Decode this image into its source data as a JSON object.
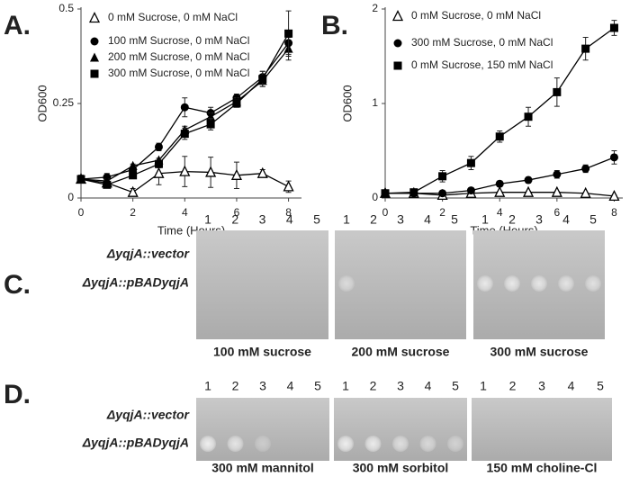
{
  "chart_data": [
    {
      "type": "line",
      "label": "A.",
      "xlabel": "Time (Hours)",
      "ylabel": "OD600",
      "x": [
        0,
        1,
        2,
        3,
        4,
        5,
        6,
        7,
        8
      ],
      "xlim": [
        0,
        8.5
      ],
      "xticks": [
        0,
        2,
        4,
        6,
        8
      ],
      "ylim": [
        0,
        0.5
      ],
      "yticks": [
        0,
        0.25,
        0.5
      ],
      "grid": false,
      "legend": "upper left",
      "series": [
        {
          "name": "0 mM Sucrose, 0 mM NaCl",
          "color": "#000000",
          "marker": "triangle-open",
          "values": [
            0.05,
            0.04,
            0.015,
            0.065,
            0.07,
            0.068,
            0.06,
            0.065,
            0.03
          ],
          "errors": [
            0.01,
            0.01,
            0.01,
            0.03,
            0.04,
            0.04,
            0.035,
            0.01,
            0.015
          ]
        },
        {
          "name": "100 mM Sucrose, 0 mM NaCl",
          "color": "#000000",
          "marker": "circle",
          "values": [
            0.05,
            0.055,
            0.075,
            0.135,
            0.24,
            0.225,
            0.265,
            0.32,
            0.41
          ],
          "errors": [
            0.01,
            0.01,
            0.01,
            0.01,
            0.025,
            0.015,
            0.01,
            0.015,
            0.03
          ]
        },
        {
          "name": "200 mM Sucrose, 0 mM NaCl",
          "color": "#000000",
          "marker": "triangle",
          "values": [
            0.05,
            0.045,
            0.085,
            0.1,
            0.18,
            0.215,
            0.255,
            0.31,
            0.395
          ],
          "errors": [
            0.005,
            0.005,
            0.005,
            0.005,
            0.01,
            0.01,
            0.01,
            0.015,
            0.03
          ]
        },
        {
          "name": "300 mM Sucrose, 0 mM NaCl",
          "color": "#000000",
          "marker": "square",
          "values": [
            0.05,
            0.035,
            0.06,
            0.09,
            0.17,
            0.195,
            0.25,
            0.315,
            0.435
          ],
          "errors": [
            0.005,
            0.005,
            0.005,
            0.01,
            0.015,
            0.015,
            0.01,
            0.02,
            0.06
          ]
        }
      ]
    },
    {
      "type": "line",
      "label": "B.",
      "xlabel": "Time (Hours)",
      "ylabel": "OD600",
      "x": [
        0,
        1,
        2,
        3,
        4,
        5,
        6,
        7,
        8
      ],
      "xlim": [
        0,
        8.3
      ],
      "xticks": [
        0,
        2,
        4,
        6,
        8
      ],
      "ylim": [
        0,
        2
      ],
      "yticks": [
        0,
        1,
        2
      ],
      "grid": false,
      "legend": "upper left",
      "series": [
        {
          "name": "0 mM Sucrose, 0 mM NaCl",
          "color": "#000000",
          "marker": "triangle-open",
          "values": [
            0.05,
            0.05,
            0.03,
            0.05,
            0.06,
            0.06,
            0.06,
            0.05,
            0.02
          ],
          "errors": [
            0.01,
            0.01,
            0.01,
            0.01,
            0.01,
            0.01,
            0.01,
            0.01,
            0.01
          ]
        },
        {
          "name": "300 mM Sucrose, 0 mM NaCl",
          "color": "#000000",
          "marker": "circle",
          "values": [
            0.05,
            0.05,
            0.05,
            0.08,
            0.15,
            0.19,
            0.25,
            0.31,
            0.43
          ],
          "errors": [
            0.01,
            0.01,
            0.01,
            0.02,
            0.03,
            0.03,
            0.04,
            0.04,
            0.07
          ]
        },
        {
          "name": "0 mM Sucrose, 150 mM NaCl",
          "color": "#000000",
          "marker": "square",
          "values": [
            0.05,
            0.06,
            0.23,
            0.37,
            0.65,
            0.86,
            1.12,
            1.58,
            1.8
          ],
          "errors": [
            0.01,
            0.02,
            0.06,
            0.07,
            0.06,
            0.1,
            0.15,
            0.12,
            0.08
          ]
        }
      ]
    }
  ],
  "plate_panels": [
    {
      "label": "C.",
      "rows": [
        "ΔyqjA::vector",
        "ΔyqjA::pBADyqjA"
      ],
      "plates": [
        {
          "caption": "100 mM sucrose",
          "columns": [
            1,
            2,
            3,
            4,
            5
          ]
        },
        {
          "caption": "200 mM sucrose",
          "columns": [
            1,
            2,
            3,
            4,
            5
          ]
        },
        {
          "caption": "300 mM sucrose",
          "columns": [
            1,
            2,
            3,
            4,
            5
          ]
        }
      ]
    },
    {
      "label": "D.",
      "rows": [
        "ΔyqjA::vector",
        "ΔyqjA::pBADyqjA"
      ],
      "plates": [
        {
          "caption": "300 mM mannitol",
          "columns": [
            1,
            2,
            3,
            4,
            5
          ]
        },
        {
          "caption": "300 mM sorbitol",
          "columns": [
            1,
            2,
            3,
            4,
            5
          ]
        },
        {
          "caption": "150 mM choline-Cl",
          "columns": [
            1,
            2,
            3,
            4,
            5
          ]
        }
      ]
    }
  ]
}
